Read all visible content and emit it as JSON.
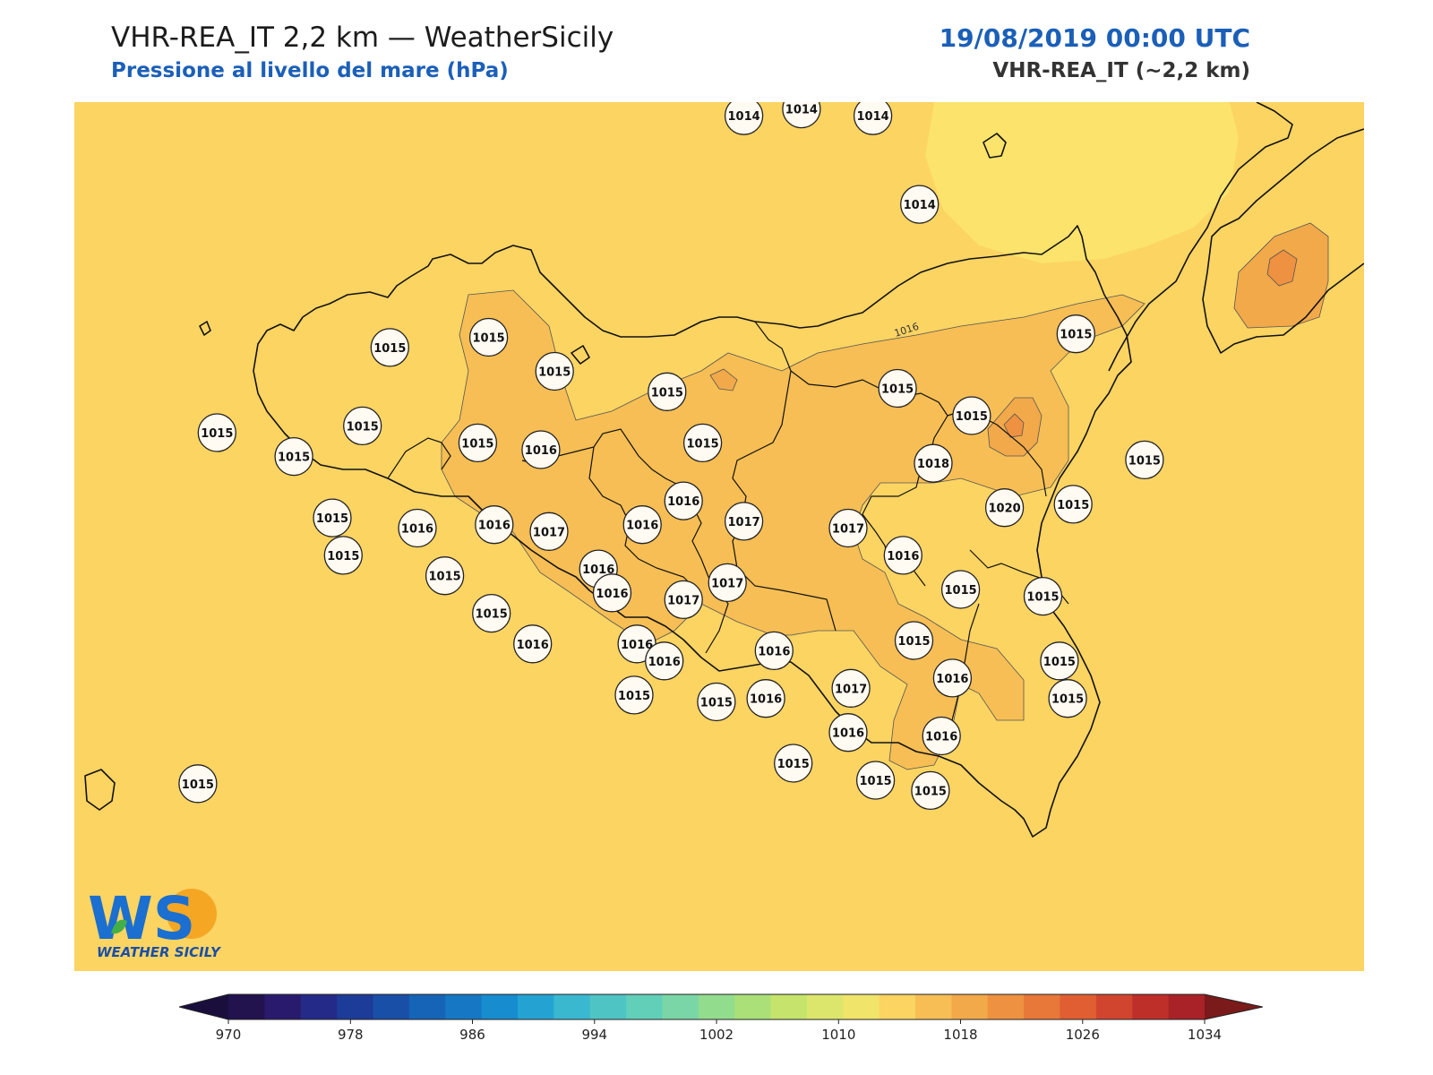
{
  "header": {
    "title": "VHR-REA_IT 2,2 km — WeatherSicily",
    "subtitle": "Pressione al livello del mare (hPa)",
    "datetime": "19/08/2019 00:00 UTC",
    "model": "VHR-REA_IT (~2,2 km)"
  },
  "logo": {
    "mark": "WS",
    "name": "WEATHER SICILY"
  },
  "isoline_label": "1016",
  "colors": {
    "base_field": "#fbd462",
    "field_1016": "#f6be54",
    "field_1018": "#f2a94a",
    "field_1014": "#fbe36c"
  },
  "stations": [
    {
      "value": "1014",
      "lon": 13.79,
      "lat": 38.86
    },
    {
      "value": "1014",
      "lon": 14.0,
      "lat": 38.88
    },
    {
      "value": "1014",
      "lon": 14.26,
      "lat": 38.86
    },
    {
      "value": "1014",
      "lon": 14.43,
      "lat": 38.6
    },
    {
      "value": "1015",
      "lon": 15.0,
      "lat": 38.22
    },
    {
      "value": "1015",
      "lon": 14.35,
      "lat": 38.06
    },
    {
      "value": "1015",
      "lon": 14.62,
      "lat": 37.98
    },
    {
      "value": "1015",
      "lon": 15.25,
      "lat": 37.85
    },
    {
      "value": "1015",
      "lon": 12.5,
      "lat": 38.18
    },
    {
      "value": "1015",
      "lon": 12.86,
      "lat": 38.21
    },
    {
      "value": "1015",
      "lon": 13.1,
      "lat": 38.11
    },
    {
      "value": "1015",
      "lon": 13.51,
      "lat": 38.05
    },
    {
      "value": "1015",
      "lon": 11.87,
      "lat": 37.93
    },
    {
      "value": "1015",
      "lon": 12.4,
      "lat": 37.95
    },
    {
      "value": "1015",
      "lon": 12.82,
      "lat": 37.9
    },
    {
      "value": "1016",
      "lon": 13.05,
      "lat": 37.88
    },
    {
      "value": "1015",
      "lon": 12.15,
      "lat": 37.86
    },
    {
      "value": "1015",
      "lon": 13.64,
      "lat": 37.9
    },
    {
      "value": "1015",
      "lon": 12.29,
      "lat": 37.68
    },
    {
      "value": "1016",
      "lon": 12.6,
      "lat": 37.65
    },
    {
      "value": "1016",
      "lon": 12.88,
      "lat": 37.66
    },
    {
      "value": "1017",
      "lon": 13.08,
      "lat": 37.64
    },
    {
      "value": "1016",
      "lon": 13.42,
      "lat": 37.66
    },
    {
      "value": "1016",
      "lon": 13.26,
      "lat": 37.53
    },
    {
      "value": "1016",
      "lon": 13.57,
      "lat": 37.73
    },
    {
      "value": "1017",
      "lon": 13.79,
      "lat": 37.67
    },
    {
      "value": "1017",
      "lon": 14.17,
      "lat": 37.65
    },
    {
      "value": "1018",
      "lon": 14.48,
      "lat": 37.84
    },
    {
      "value": "1020",
      "lon": 14.74,
      "lat": 37.71
    },
    {
      "value": "1015",
      "lon": 14.99,
      "lat": 37.72
    },
    {
      "value": "1015",
      "lon": 12.33,
      "lat": 37.57
    },
    {
      "value": "1015",
      "lon": 12.7,
      "lat": 37.51
    },
    {
      "value": "1016",
      "lon": 14.37,
      "lat": 37.57
    },
    {
      "value": "1017",
      "lon": 13.73,
      "lat": 37.49
    },
    {
      "value": "1016",
      "lon": 13.31,
      "lat": 37.46
    },
    {
      "value": "1017",
      "lon": 13.57,
      "lat": 37.44
    },
    {
      "value": "1015",
      "lon": 14.58,
      "lat": 37.47
    },
    {
      "value": "1015",
      "lon": 14.88,
      "lat": 37.45
    },
    {
      "value": "1015",
      "lon": 12.87,
      "lat": 37.4
    },
    {
      "value": "1015",
      "lon": 14.41,
      "lat": 37.32
    },
    {
      "value": "1016",
      "lon": 13.02,
      "lat": 37.31
    },
    {
      "value": "1016",
      "lon": 13.4,
      "lat": 37.31
    },
    {
      "value": "1016",
      "lon": 13.9,
      "lat": 37.29
    },
    {
      "value": "1016",
      "lon": 13.5,
      "lat": 37.26
    },
    {
      "value": "1015",
      "lon": 14.94,
      "lat": 37.26
    },
    {
      "value": "1017",
      "lon": 14.18,
      "lat": 37.18
    },
    {
      "value": "1016",
      "lon": 14.55,
      "lat": 37.21
    },
    {
      "value": "1015",
      "lon": 13.39,
      "lat": 37.16
    },
    {
      "value": "1015",
      "lon": 13.69,
      "lat": 37.14
    },
    {
      "value": "1016",
      "lon": 13.87,
      "lat": 37.15
    },
    {
      "value": "1015",
      "lon": 14.97,
      "lat": 37.15
    },
    {
      "value": "1016",
      "lon": 14.17,
      "lat": 37.05
    },
    {
      "value": "1016",
      "lon": 14.51,
      "lat": 37.04
    },
    {
      "value": "1015",
      "lon": 13.97,
      "lat": 36.96
    },
    {
      "value": "1015",
      "lon": 14.27,
      "lat": 36.91
    },
    {
      "value": "1015",
      "lon": 14.47,
      "lat": 36.88
    },
    {
      "value": "1015",
      "lon": 11.8,
      "lat": 36.9
    }
  ],
  "colorbar": {
    "levels": [
      970,
      974,
      978,
      982,
      986,
      990,
      994,
      998,
      1002,
      1006,
      1010,
      1014,
      1018,
      1022,
      1026,
      1030,
      1034
    ],
    "tick_labels": [
      "970",
      "978",
      "986",
      "994",
      "1002",
      "1010",
      "1018",
      "1026",
      "1034"
    ],
    "colors": [
      "#22124e",
      "#2a1a6e",
      "#242a88",
      "#1d3b98",
      "#1a4fa8",
      "#1664b7",
      "#1678c4",
      "#178ccf",
      "#24a3d3",
      "#3ab8d0",
      "#4fc4c4",
      "#62cfb8",
      "#7ad6a6",
      "#92dc8e",
      "#abe078",
      "#c6e36c",
      "#dde66c",
      "#f0e46a",
      "#fbd462",
      "#f6be54",
      "#f2a94a",
      "#ee9140",
      "#e8773a",
      "#e05e32",
      "#d1452e",
      "#bf2f2a",
      "#a82227",
      "#7a1a1a"
    ],
    "extend_low": "#1a0f3c",
    "extend_high": "#7a1a1a"
  }
}
